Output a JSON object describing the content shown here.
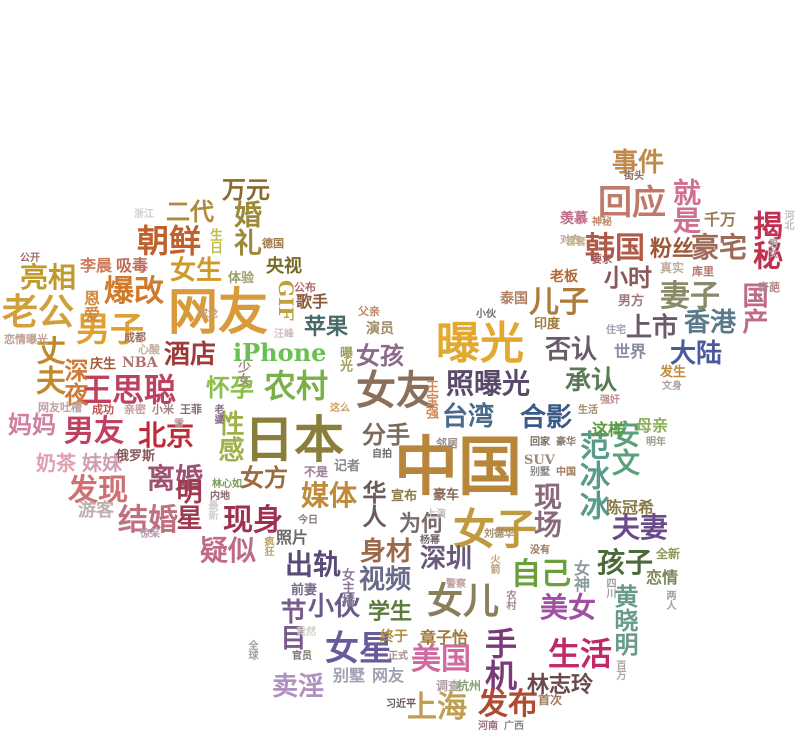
{
  "words": [
    {
      "text": "中国",
      "color": "#b8863b"
    },
    {
      "text": "日本",
      "color": "#8a7f3a"
    },
    {
      "text": "网友",
      "color": "#d99a3a"
    },
    {
      "text": "曝光",
      "color": "#e3a82e"
    },
    {
      "text": "女友",
      "color": "#8a6f5a"
    },
    {
      "text": "男子",
      "color": "#e0a030"
    },
    {
      "text": "女子",
      "color": "#c09a40"
    },
    {
      "text": "女儿",
      "color": "#8a7f5a"
    },
    {
      "text": "深圳",
      "color": "#6a5a7a"
    },
    {
      "text": "台湾",
      "color": "#4a6a8a"
    },
    {
      "text": "现身",
      "color": "#a03050"
    },
    {
      "text": "离婚",
      "color": "#a05070"
    },
    {
      "text": "范冰冰",
      "color": "#5a9a8a"
    },
    {
      "text": "王思聪",
      "color": "#c04060"
    },
    {
      "text": "朝鲜",
      "color": "#c0602a"
    },
    {
      "text": "女生",
      "color": "#d09a2a"
    },
    {
      "text": "男友",
      "color": "#c04060"
    },
    {
      "text": "北京",
      "color": "#c02a3a"
    },
    {
      "text": "发现",
      "color": "#d07070"
    },
    {
      "text": "结婚",
      "color": "#c07080"
    },
    {
      "text": "疑似",
      "color": "#c06a8a"
    },
    {
      "text": "出轨",
      "color": "#5a4a7a"
    },
    {
      "text": "女星",
      "color": "#6a5a9a"
    },
    {
      "text": "美国",
      "color": "#d06aa0"
    },
    {
      "text": "手机",
      "color": "#7a3a7a"
    },
    {
      "text": "生活",
      "color": "#c02a6a"
    },
    {
      "text": "发布",
      "color": "#b04a30"
    },
    {
      "text": "上海",
      "color": "#c0a050"
    },
    {
      "text": "卖淫",
      "color": "#b090c0"
    },
    {
      "text": "视频",
      "color": "#6a6a8a"
    },
    {
      "text": "身材",
      "color": "#9a6a4a"
    },
    {
      "text": "小伙",
      "color": "#6a5a8a"
    },
    {
      "text": "学生",
      "color": "#5a7a3a"
    },
    {
      "text": "美女",
      "color": "#a050a0"
    },
    {
      "text": "孩子",
      "color": "#4a6a3a"
    },
    {
      "text": "自己",
      "color": "#6aa03a"
    },
    {
      "text": "夫妻",
      "color": "#6a4a8a"
    },
    {
      "text": "合影",
      "color": "#3a5a8a"
    },
    {
      "text": "承认",
      "color": "#5a7a5a"
    },
    {
      "text": "否认",
      "color": "#6a5a6a"
    },
    {
      "text": "儿子",
      "color": "#b07a3a"
    },
    {
      "text": "照曝光",
      "color": "#5a4a6a"
    },
    {
      "text": "女孩",
      "color": "#8a6a8a"
    },
    {
      "text": "农村",
      "color": "#7ab04a"
    },
    {
      "text": "怀孕",
      "color": "#8ac04a"
    },
    {
      "text": "iPhone",
      "color": "#6ac050"
    },
    {
      "text": "苹果",
      "color": "#4a6a6a"
    },
    {
      "text": "媒体",
      "color": "#c08a3a"
    },
    {
      "text": "女方",
      "color": "#9a6a3a"
    },
    {
      "text": "酒店",
      "color": "#a03a3a"
    },
    {
      "text": "爆改",
      "color": "#d07a2a"
    },
    {
      "text": "亮相",
      "color": "#c09a2a"
    },
    {
      "text": "老公",
      "color": "#d0a03a"
    },
    {
      "text": "丈夫",
      "color": "#c08a2a"
    },
    {
      "text": "深夜",
      "color": "#d07a3a"
    },
    {
      "text": "婚礼",
      "color": "#9a8a3a"
    },
    {
      "text": "万元",
      "color": "#8a6a2a"
    },
    {
      "text": "二代",
      "color": "#b08a3a"
    },
    {
      "text": "事件",
      "color": "#c08a4a"
    },
    {
      "text": "回应",
      "color": "#c07a6a"
    },
    {
      "text": "就是",
      "color": "#d07090"
    },
    {
      "text": "韩国",
      "color": "#b05a4a"
    },
    {
      "text": "粉丝",
      "color": "#9a5a3a"
    },
    {
      "text": "豪宅",
      "color": "#a06a5a"
    },
    {
      "text": "揭秘",
      "color": "#c03050"
    },
    {
      "text": "妻子",
      "color": "#8a8a6a"
    },
    {
      "text": "小时",
      "color": "#8a5a5a"
    },
    {
      "text": "上市",
      "color": "#6a5a6a"
    },
    {
      "text": "香港",
      "color": "#5a7a8a"
    },
    {
      "text": "大陆",
      "color": "#4a5a9a"
    },
    {
      "text": "国产",
      "color": "#c06a8a"
    },
    {
      "text": "性感",
      "color": "#a0b04a"
    },
    {
      "text": "明星",
      "color": "#a03a50"
    },
    {
      "text": "妈妈",
      "color": "#d080a0"
    },
    {
      "text": "分手",
      "color": "#7a6a5a"
    },
    {
      "text": "华人",
      "color": "#6a5a5a"
    },
    {
      "text": "为何",
      "color": "#7a6a6a"
    },
    {
      "text": "现场",
      "color": "#8a6a7a"
    },
    {
      "text": "安文",
      "color": "#5aa07a"
    },
    {
      "text": "黄晓明",
      "color": "#6a9a8a"
    },
    {
      "text": "林志玲",
      "color": "#6a4a4a"
    },
    {
      "text": "节目",
      "color": "#7a5a8a"
    },
    {
      "text": "陈冠希",
      "color": "#8a7a4a"
    },
    {
      "text": "恋情",
      "color": "#7a8a5a"
    },
    {
      "text": "母亲",
      "color": "#8ab05a"
    },
    {
      "text": "这样",
      "color": "#5a9a3a"
    },
    {
      "text": "奶茶",
      "color": "#e0a0b0"
    },
    {
      "text": "妹妹",
      "color": "#d0a0b0"
    },
    {
      "text": "央视",
      "color": "#7a6a2a"
    },
    {
      "text": "歌手",
      "color": "#8a5a3a"
    },
    {
      "text": "GIF",
      "color": "#c0a03a"
    },
    {
      "text": "恩爱",
      "color": "#d08a3a"
    },
    {
      "text": "李晨",
      "color": "#d07a5a"
    },
    {
      "text": "吸毒",
      "color": "#c06a5a"
    },
    {
      "text": "庆生",
      "color": "#a05a3a"
    },
    {
      "text": "NBA",
      "color": "#b07070"
    },
    {
      "text": "俄罗斯",
      "color": "#8a5a5a"
    },
    {
      "text": "游客",
      "color": "#c0b0b0"
    },
    {
      "text": "照片",
      "color": "#6a6a6a"
    },
    {
      "text": "豪车",
      "color": "#8a6a5a"
    },
    {
      "text": "宣布",
      "color": "#8a7a4a"
    },
    {
      "text": "前妻",
      "color": "#7a6a8a"
    },
    {
      "text": "终于",
      "color": "#b0903a"
    },
    {
      "text": "章子怡",
      "color": "#a07a3a"
    },
    {
      "text": "别墅",
      "color": "#a0a0b0"
    },
    {
      "text": "网友",
      "color": "#a0a0b0"
    },
    {
      "text": "老板",
      "color": "#b06a3a"
    },
    {
      "text": "印度",
      "color": "#a07a3a"
    },
    {
      "text": "泰国",
      "color": "#b08060"
    },
    {
      "text": "男方",
      "color": "#a07a7a"
    },
    {
      "text": "世界",
      "color": "#8a8aa0"
    },
    {
      "text": "发生",
      "color": "#c08a3a"
    },
    {
      "text": "女神",
      "color": "#8a9aa0"
    },
    {
      "text": "杭州",
      "color": "#8aa070"
    },
    {
      "text": "首次",
      "color": "#a07a5a"
    },
    {
      "text": "少女",
      "color": "#a08a7a"
    },
    {
      "text": "生日",
      "color": "#c0c04a"
    },
    {
      "text": "体验",
      "color": "#a0a06a"
    },
    {
      "text": "德国",
      "color": "#a07a4a"
    },
    {
      "text": "演员",
      "color": "#a08a6a"
    },
    {
      "text": "父亲",
      "color": "#c08a6a"
    },
    {
      "text": "公布",
      "color": "#b06a6a"
    },
    {
      "text": "要求",
      "color": "#a05a5a"
    },
    {
      "text": "千万",
      "color": "#9a7a5a"
    },
    {
      "text": "羡慕",
      "color": "#c06a8a"
    },
    {
      "text": "神秘",
      "color": "#c08a6a"
    },
    {
      "text": "真实",
      "color": "#c0b0a0"
    },
    {
      "text": "库里",
      "color": "#b07a6a"
    },
    {
      "text": "奇葩",
      "color": "#b08a8a"
    },
    {
      "text": "街头",
      "color": "#8a6a5a"
    },
    {
      "text": "对方",
      "color": "#c0a0a0"
    },
    {
      "text": "心酸",
      "color": "#c0b0a0"
    },
    {
      "text": "成都",
      "color": "#a07060"
    },
    {
      "text": "网友吐槽",
      "color": "#c0a0a0"
    },
    {
      "text": "成功",
      "color": "#c05050"
    },
    {
      "text": "亲密",
      "color": "#c0a0a0"
    },
    {
      "text": "小米",
      "color": "#a08080"
    },
    {
      "text": "王菲",
      "color": "#8a6a6a"
    },
    {
      "text": "公开",
      "color": "#a06a6a"
    },
    {
      "text": "恋情曝光",
      "color": "#c0a090"
    },
    {
      "text": "浙江",
      "color": "#d0d0d0"
    },
    {
      "text": "汪峰",
      "color": "#d0c0c0"
    },
    {
      "text": "老婆",
      "color": "#8a6a8a"
    },
    {
      "text": "曝光",
      "color": "#a0a060"
    },
    {
      "text": "王宝强",
      "color": "#d08a5a"
    },
    {
      "text": "这么",
      "color": "#d0a05a"
    },
    {
      "text": "邻居",
      "color": "#a08a8a"
    },
    {
      "text": "自拍",
      "color": "#6a6a6a"
    },
    {
      "text": "记者",
      "color": "#8a8a8a"
    },
    {
      "text": "不是",
      "color": "#9a7a9a"
    },
    {
      "text": "SUV",
      "color": "#9a8a7a"
    },
    {
      "text": "回家",
      "color": "#7a6a5a"
    },
    {
      "text": "豪华",
      "color": "#8a7a6a"
    },
    {
      "text": "别墅",
      "color": "#8a8a8a"
    },
    {
      "text": "中国",
      "color": "#a07a5a"
    },
    {
      "text": "生活",
      "color": "#a08a6a"
    },
    {
      "text": "明年",
      "color": "#a09a8a"
    },
    {
      "text": "全新",
      "color": "#8a9a5a"
    },
    {
      "text": "官员",
      "color": "#7a7a6a"
    },
    {
      "text": "杨幂",
      "color": "#7a6a6a"
    },
    {
      "text": "刘德华",
      "color": "#a08a6a"
    },
    {
      "text": "火箭",
      "color": "#c0a07a"
    },
    {
      "text": "女主播",
      "color": "#8a7a9a"
    },
    {
      "text": "林心如",
      "color": "#7a9a5a"
    },
    {
      "text": "内地",
      "color": "#8a6a6a"
    },
    {
      "text": "今日",
      "color": "#8a7a7a"
    },
    {
      "text": "河南",
      "color": "#a0707a"
    },
    {
      "text": "广西",
      "color": "#8a8a8a"
    },
    {
      "text": "小伙",
      "color": "#6a6a6a"
    },
    {
      "text": "调查",
      "color": "#b0a0a0"
    },
    {
      "text": "强奸",
      "color": "#c09090"
    },
    {
      "text": "四川",
      "color": "#a0a0a0"
    },
    {
      "text": "文身",
      "color": "#b0a0a0"
    },
    {
      "text": "住宅",
      "color": "#a0a0b0"
    },
    {
      "text": "男女",
      "color": "#b0a0a0"
    },
    {
      "text": "河北",
      "color": "#c0c0c0"
    },
    {
      "text": "上演",
      "color": "#c0c0c0"
    },
    {
      "text": "疯狂",
      "color": "#c0a060"
    },
    {
      "text": "首套",
      "color": "#c0b080"
    },
    {
      "text": "竟然",
      "color": "#d0d0c0"
    },
    {
      "text": "正式",
      "color": "#a09090"
    },
    {
      "text": "没有",
      "color": "#a07a5a"
    },
    {
      "text": "警察",
      "color": "#c0a0a0"
    },
    {
      "text": "百万",
      "color": "#b0a0a0"
    },
    {
      "text": "两人",
      "color": "#a0a0a0"
    },
    {
      "text": "全球",
      "color": "#a0a0a0"
    },
    {
      "text": "农村",
      "color": "#a08a8a"
    },
    {
      "text": "惊呆",
      "color": "#b0a0b0"
    },
    {
      "text": "最新",
      "color": "#d0d0d0"
    },
    {
      "text": "成龙",
      "color": "#c0a070"
    },
    {
      "text": "雷",
      "color": "#c0a0a0"
    },
    {
      "text": "习近平",
      "color": "#6a5a5a"
    },
    {
      "text": "名",
      "color": "#c0c0b0"
    }
  ]
}
